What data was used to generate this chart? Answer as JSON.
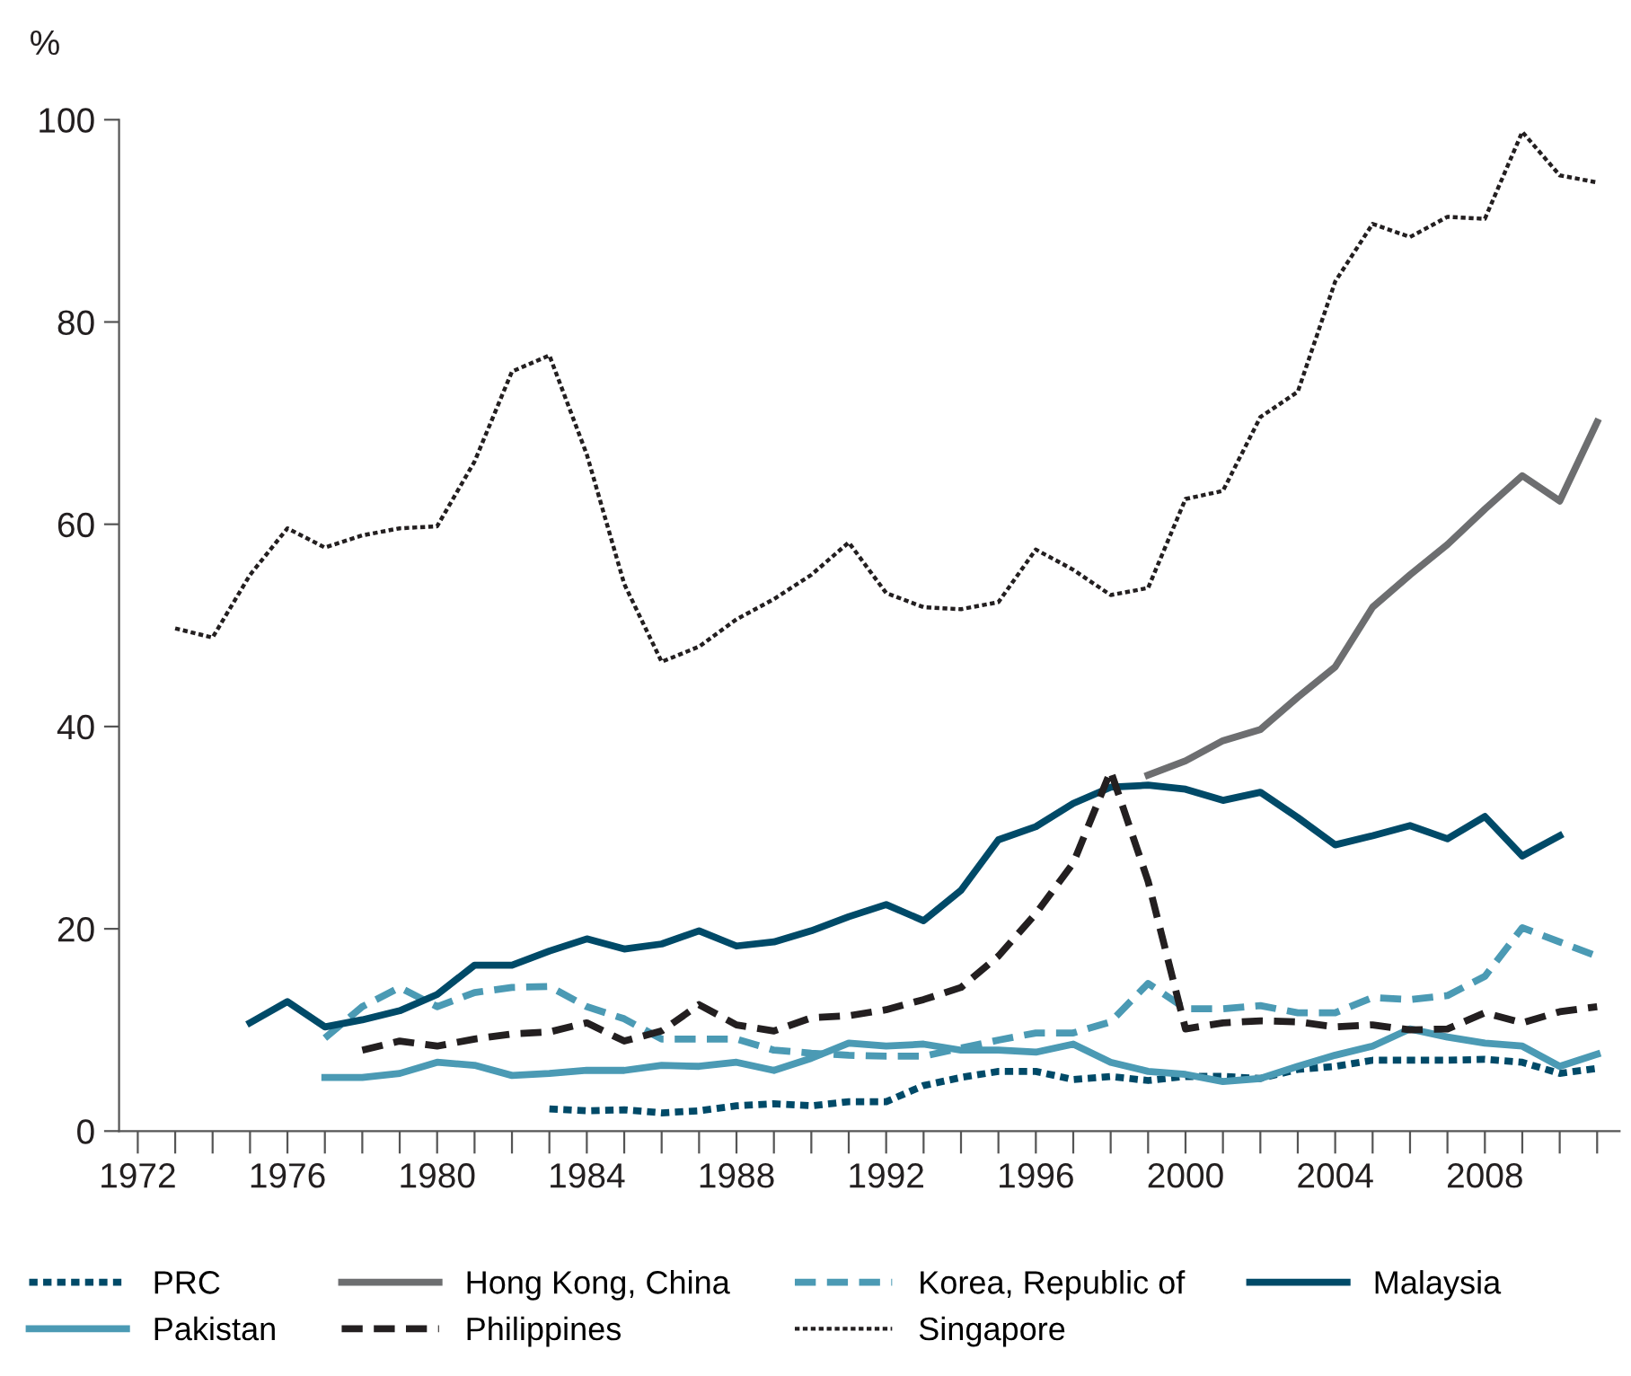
{
  "chart_data": {
    "type": "line",
    "ylabel": "%",
    "x": [
      1973,
      1974,
      1975,
      1976,
      1977,
      1978,
      1979,
      1980,
      1981,
      1982,
      1983,
      1984,
      1985,
      1986,
      1987,
      1988,
      1989,
      1990,
      1991,
      1992,
      1993,
      1994,
      1995,
      1996,
      1997,
      1998,
      1999,
      2000,
      2001,
      2002,
      2003,
      2004,
      2005,
      2006,
      2007,
      2008,
      2009,
      2010,
      2011
    ],
    "xlim": [
      1971.5,
      2011.6
    ],
    "xticks": [
      1972,
      {
        "value": 1973,
        "label": null
      },
      {
        "value": 1974,
        "label": null
      },
      {
        "value": 1975,
        "label": null
      },
      1976,
      {
        "value": 1977,
        "label": null
      },
      {
        "value": 1978,
        "label": null
      },
      {
        "value": 1979,
        "label": null
      },
      1980,
      {
        "value": 1981,
        "label": null
      },
      {
        "value": 1982,
        "label": null
      },
      {
        "value": 1983,
        "label": null
      },
      1984,
      {
        "value": 1985,
        "label": null
      },
      {
        "value": 1986,
        "label": null
      },
      {
        "value": 1987,
        "label": null
      },
      1988,
      {
        "value": 1989,
        "label": null
      },
      {
        "value": 1990,
        "label": null
      },
      {
        "value": 1991,
        "label": null
      },
      1992,
      {
        "value": 1993,
        "label": null
      },
      {
        "value": 1994,
        "label": null
      },
      {
        "value": 1995,
        "label": null
      },
      1996,
      {
        "value": 1997,
        "label": null
      },
      {
        "value": 1998,
        "label": null
      },
      {
        "value": 1999,
        "label": null
      },
      2000,
      {
        "value": 2001,
        "label": null
      },
      {
        "value": 2002,
        "label": null
      },
      {
        "value": 2003,
        "label": null
      },
      2004,
      {
        "value": 2005,
        "label": null
      },
      {
        "value": 2006,
        "label": null
      },
      {
        "value": 2007,
        "label": null
      },
      2008,
      {
        "value": 2009,
        "label": null
      },
      {
        "value": 2010,
        "label": null
      },
      {
        "value": 2011,
        "label": null
      }
    ],
    "ylim": [
      0,
      100
    ],
    "yticks": [
      0,
      20,
      40,
      60,
      80,
      100
    ],
    "grid": false,
    "legend": "bottom",
    "marker": "none",
    "series": [
      {
        "name": "PRC",
        "color": "#004a68",
        "line_style": "dotted",
        "values": [
          null,
          null,
          null,
          null,
          null,
          null,
          null,
          null,
          null,
          null,
          2.2,
          2.0,
          2.1,
          1.8,
          2.0,
          2.5,
          2.7,
          2.5,
          2.9,
          2.9,
          4.5,
          5.3,
          5.9,
          5.9,
          5.1,
          5.4,
          5.0,
          5.4,
          5.4,
          5.2,
          6.1,
          6.4,
          7.0,
          7.0,
          7.0,
          7.1,
          6.8,
          5.7,
          6.2
        ]
      },
      {
        "name": "Hong Kong, China",
        "color": "#6d6e70",
        "line_style": "solid",
        "values": [
          null,
          null,
          null,
          null,
          null,
          null,
          null,
          null,
          null,
          null,
          null,
          null,
          null,
          null,
          null,
          null,
          null,
          null,
          null,
          null,
          null,
          null,
          null,
          null,
          null,
          null,
          35.2,
          36.6,
          38.6,
          39.7,
          42.9,
          45.9,
          51.8,
          55.0,
          58.0,
          61.5,
          64.8,
          62.3,
          70.1
        ]
      },
      {
        "name": "Korea, Republic of",
        "color": "#4b9ab4",
        "line_style": "dashed",
        "values": [
          null,
          null,
          null,
          null,
          9.2,
          12.3,
          14.2,
          12.3,
          13.7,
          14.2,
          14.3,
          12.3,
          11.1,
          9.1,
          9.1,
          9.1,
          8.0,
          7.7,
          7.5,
          7.4,
          7.4,
          8.2,
          9.0,
          9.7,
          9.7,
          10.8,
          14.6,
          12.1,
          12.1,
          12.4,
          11.7,
          11.7,
          13.2,
          13.0,
          13.4,
          15.3,
          20.1,
          18.7,
          17.3
        ]
      },
      {
        "name": "Malaysia",
        "color": "#004a68",
        "line_style": "solid",
        "values": [
          null,
          null,
          10.7,
          12.8,
          10.3,
          11.0,
          11.9,
          13.5,
          16.4,
          16.4,
          17.8,
          19.0,
          18.0,
          18.5,
          19.8,
          18.3,
          18.7,
          19.8,
          21.2,
          22.4,
          20.8,
          23.8,
          28.8,
          30.1,
          32.4,
          34.0,
          34.2,
          33.8,
          32.7,
          33.5,
          31.0,
          28.3,
          29.2,
          30.2,
          28.9,
          31.1,
          27.2,
          29.2,
          null
        ]
      },
      {
        "name": "Pakistan",
        "color": "#4b9ab4",
        "line_style": "solid",
        "values": [
          null,
          null,
          null,
          null,
          5.3,
          5.3,
          5.7,
          6.8,
          6.5,
          5.5,
          5.7,
          6.0,
          6.0,
          6.5,
          6.4,
          6.8,
          6.0,
          7.2,
          8.7,
          8.4,
          8.6,
          8.0,
          8.0,
          7.8,
          8.6,
          6.8,
          5.9,
          5.6,
          4.9,
          5.2,
          6.4,
          7.5,
          8.4,
          10.1,
          9.3,
          8.7,
          8.4,
          6.4,
          7.6
        ]
      },
      {
        "name": "Philippines",
        "color": "#231f20",
        "line_style": "dashed",
        "values": [
          null,
          null,
          null,
          null,
          null,
          8.0,
          8.9,
          8.4,
          9.1,
          9.6,
          9.8,
          10.7,
          8.9,
          9.9,
          12.5,
          10.5,
          9.9,
          11.2,
          11.4,
          12.0,
          13.0,
          14.2,
          17.3,
          21.5,
          26.5,
          35.6,
          24.7,
          10.1,
          10.7,
          10.9,
          10.8,
          10.3,
          10.5,
          10.0,
          10.1,
          11.7,
          10.7,
          11.8,
          12.3
        ]
      },
      {
        "name": "Singapore",
        "color": "#231f20",
        "line_style": "dotted",
        "values": [
          49.7,
          48.8,
          55.0,
          59.6,
          57.7,
          58.9,
          59.6,
          59.8,
          66.2,
          75.1,
          76.7,
          66.9,
          54.1,
          46.4,
          47.9,
          50.6,
          52.6,
          55.0,
          58.2,
          53.2,
          51.8,
          51.6,
          52.3,
          57.5,
          55.5,
          53.0,
          53.7,
          62.5,
          63.3,
          70.6,
          73.1,
          84.0,
          89.7,
          88.4,
          90.4,
          90.2,
          98.8,
          94.5,
          93.8
        ]
      }
    ]
  }
}
